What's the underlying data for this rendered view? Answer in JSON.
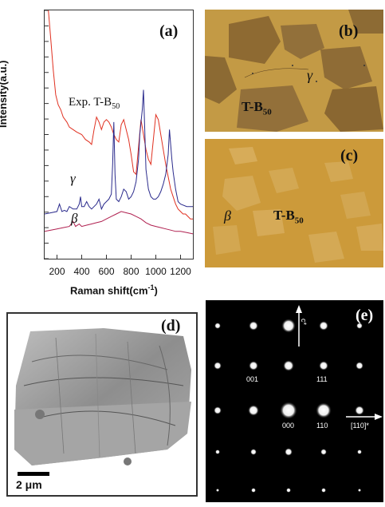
{
  "panels": {
    "a": {
      "label": "(a)"
    },
    "b": {
      "label": "(b)",
      "phase": "γ",
      "material": "T-B",
      "subscript": "50"
    },
    "c": {
      "label": "(c)",
      "phase": "β",
      "material": "T-B",
      "subscript": "50"
    },
    "d": {
      "label": "(d)",
      "scale_bar": "2 μm"
    },
    "e": {
      "label": "(e)",
      "axis_c": "c*",
      "axis_110": "[110]*",
      "spots": [
        "001",
        "111",
        "000",
        "110"
      ]
    }
  },
  "chart_data": {
    "type": "line",
    "xlabel": "Raman shift(cm",
    "xlabel_sup": "-1",
    "xlabel_end": ")",
    "ylabel": "Intensity(a.u.)",
    "xlim": [
      100,
      1300
    ],
    "xticks": [
      "200",
      "400",
      "600",
      "800",
      "1000",
      "1200"
    ],
    "yticks_labeled": false,
    "colors": {
      "exp": "#e03020",
      "gamma": "#2a2a8c",
      "beta": "#b02050"
    },
    "annotations": {
      "exp": "Exp. T-B",
      "exp_sub": "50",
      "gamma": "γ",
      "beta": "β"
    },
    "series": [
      {
        "key": "exp",
        "x": [
          130,
          150,
          170,
          190,
          210,
          230,
          250,
          280,
          300,
          330,
          360,
          400,
          430,
          460,
          480,
          500,
          520,
          540,
          560,
          580,
          600,
          620,
          640,
          660,
          680,
          700,
          720,
          740,
          760,
          780,
          800,
          820,
          840,
          860,
          880,
          900,
          920,
          940,
          960,
          980,
          1000,
          1020,
          1040,
          1060,
          1080,
          1100,
          1120,
          1140,
          1160,
          1180,
          1200,
          1220,
          1240,
          1260,
          1280,
          1300
        ],
        "y": [
          100,
          88,
          76,
          66,
          62,
          60,
          57,
          55,
          53,
          52,
          51,
          50,
          48,
          47,
          46,
          52,
          57,
          55,
          52,
          55,
          56,
          55,
          53,
          50,
          48,
          47,
          54,
          56,
          52,
          48,
          42,
          35,
          34,
          45,
          56,
          50,
          44,
          40,
          38,
          48,
          58,
          56,
          50,
          44,
          38,
          33,
          28,
          25,
          22,
          20,
          19,
          18,
          18,
          17,
          16,
          16
        ]
      },
      {
        "key": "gamma",
        "x": [
          100,
          150,
          200,
          220,
          240,
          260,
          280,
          300,
          330,
          360,
          380,
          390,
          400,
          420,
          440,
          460,
          480,
          500,
          520,
          540,
          560,
          580,
          600,
          620,
          640,
          650,
          660,
          670,
          680,
          700,
          720,
          740,
          760,
          780,
          800,
          820,
          840,
          860,
          870,
          880,
          890,
          900,
          910,
          920,
          940,
          960,
          980,
          1000,
          1020,
          1040,
          1060,
          1080,
          1100,
          1110,
          1120,
          1130,
          1140,
          1160,
          1180,
          1200,
          1250,
          1300
        ],
        "y": [
          18,
          18.5,
          19,
          22,
          19,
          19.5,
          19,
          21,
          20,
          20,
          22,
          25,
          21,
          21,
          23,
          21,
          20,
          21,
          22,
          24,
          20,
          22,
          23,
          24,
          26,
          38,
          55,
          34,
          24,
          23,
          25,
          28,
          27,
          24,
          25,
          27,
          31,
          40,
          50,
          55,
          60,
          68,
          52,
          36,
          28,
          25,
          24,
          24,
          25,
          27,
          30,
          34,
          42,
          52,
          46,
          40,
          35,
          28,
          23,
          22,
          21,
          21
        ]
      },
      {
        "key": "beta",
        "x": [
          100,
          150,
          200,
          250,
          300,
          330,
          350,
          380,
          400,
          440,
          480,
          520,
          560,
          600,
          640,
          680,
          720,
          760,
          800,
          840,
          880,
          920,
          960,
          1000,
          1040,
          1080,
          1120,
          1160,
          1200,
          1250,
          1300
        ],
        "y": [
          11,
          11.5,
          12,
          12.5,
          13,
          15,
          13,
          14,
          13,
          13.5,
          14,
          14.5,
          15,
          16,
          17,
          18,
          19,
          18.5,
          18,
          17,
          16,
          14.5,
          13.5,
          13,
          12.5,
          12,
          11.5,
          11,
          11,
          10.5,
          10
        ]
      }
    ]
  }
}
